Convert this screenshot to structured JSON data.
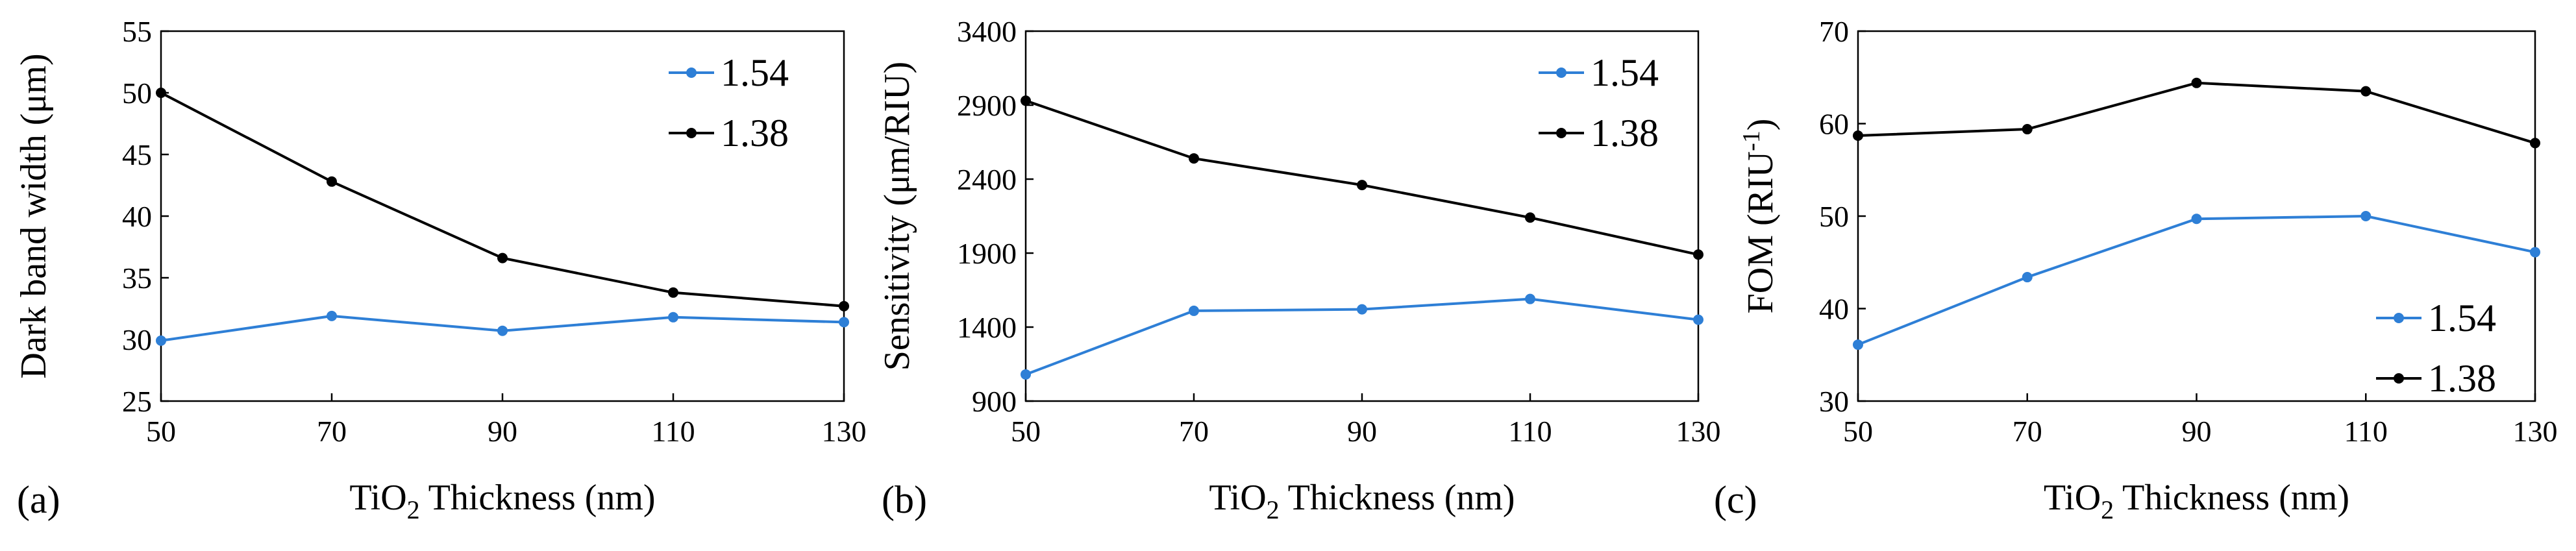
{
  "chart_data": [
    {
      "type": "line",
      "panel_label": "(a)",
      "ylabel": "Dark band width (μm)",
      "xlabel_parts": [
        "TiO",
        "2",
        " Thickness (nm)"
      ],
      "xlabel": "TiO2 Thickness (nm)",
      "x": [
        50,
        70,
        90,
        110,
        130
      ],
      "xticks": [
        "50",
        "70",
        "90",
        "110",
        "130"
      ],
      "xlim": [
        50,
        130
      ],
      "ylim": [
        25,
        55
      ],
      "yticks": [
        "25",
        "30",
        "35",
        "40",
        "45",
        "50",
        "55"
      ],
      "legend_position": "top-right",
      "series": [
        {
          "name": "1.54",
          "color": "#2e7fd6",
          "values": [
            29.9,
            31.9,
            30.7,
            31.8,
            31.4
          ]
        },
        {
          "name": "1.38",
          "color": "#000000",
          "values": [
            50.0,
            42.8,
            36.6,
            33.8,
            32.7
          ]
        }
      ]
    },
    {
      "type": "line",
      "panel_label": "(b)",
      "ylabel": "Sensitivity (μm/RIU)",
      "xlabel_parts": [
        "TiO",
        "2",
        " Thickness (nm)"
      ],
      "xlabel": "TiO2 Thickness (nm)",
      "x": [
        50,
        70,
        90,
        110,
        130
      ],
      "xticks": [
        "50",
        "70",
        "90",
        "110",
        "130"
      ],
      "xlim": [
        50,
        130
      ],
      "ylim": [
        900,
        3400
      ],
      "yticks": [
        "900",
        "1400",
        "1900",
        "2400",
        "2900",
        "3400"
      ],
      "legend_position": "top-right",
      "series": [
        {
          "name": "1.54",
          "color": "#2e7fd6",
          "values": [
            1080,
            1510,
            1520,
            1590,
            1450
          ]
        },
        {
          "name": "1.38",
          "color": "#000000",
          "values": [
            2930,
            2540,
            2360,
            2140,
            1890
          ]
        }
      ]
    },
    {
      "type": "line",
      "panel_label": "(c)",
      "ylabel_parts": [
        "FOM (RIU",
        "-1",
        ")"
      ],
      "ylabel": "FOM (RIU-1)",
      "xlabel_parts": [
        "TiO",
        "2",
        " Thickness (nm)"
      ],
      "xlabel": "TiO2 Thickness (nm)",
      "x": [
        50,
        70,
        90,
        110,
        130
      ],
      "xticks": [
        "50",
        "70",
        "90",
        "110",
        "130"
      ],
      "xlim": [
        50,
        130
      ],
      "ylim": [
        30,
        70
      ],
      "yticks": [
        "30",
        "40",
        "50",
        "60",
        "70"
      ],
      "legend_position": "bottom-right",
      "series": [
        {
          "name": "1.54",
          "color": "#2e7fd6",
          "values": [
            36.1,
            43.4,
            49.7,
            50.0,
            46.1
          ]
        },
        {
          "name": "1.38",
          "color": "#000000",
          "values": [
            58.7,
            59.4,
            64.4,
            63.5,
            57.9
          ]
        }
      ]
    }
  ]
}
